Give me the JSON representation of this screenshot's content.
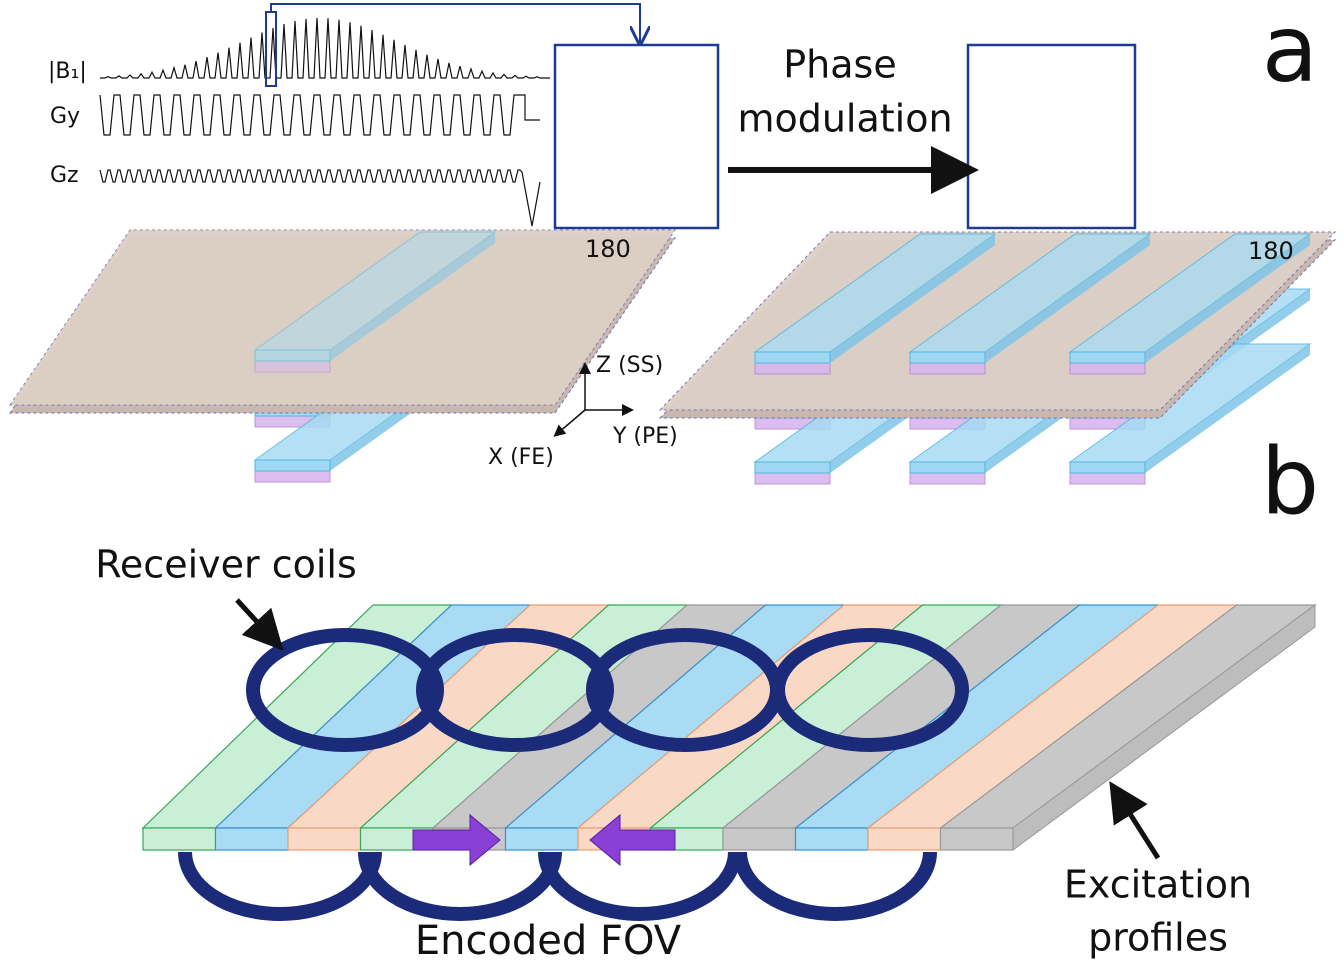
{
  "panel_labels": [
    "a",
    "b"
  ],
  "sequence_labels": [
    "|B₁|",
    "Gy",
    "Gz"
  ],
  "phase_modulation": [
    "Phase",
    "modulation"
  ],
  "slice_labels": [
    "180",
    "180"
  ],
  "axes": {
    "z": "Z (SS)",
    "y": "Y (PE)",
    "x": "X (FE)"
  },
  "receiver_coils": "Receiver coils",
  "encoded_fov": "Encoded FOV",
  "excitation_profiles": [
    "Excitation",
    "profiles"
  ]
}
